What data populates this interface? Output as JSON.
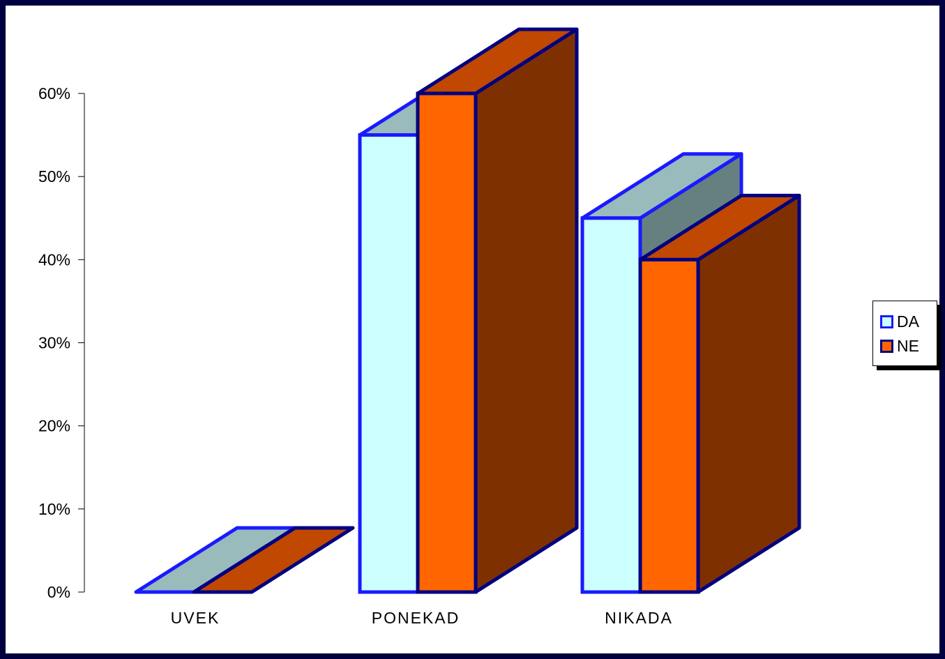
{
  "chart_data": {
    "type": "bar",
    "categories": [
      "UVEK",
      "PONEKAD",
      "NIKADA"
    ],
    "series": [
      {
        "name": "DA",
        "values": [
          0,
          55,
          45
        ]
      },
      {
        "name": "NE",
        "values": [
          0,
          60,
          40
        ]
      }
    ],
    "yticks": [
      "0%",
      "10%",
      "20%",
      "30%",
      "40%",
      "50%",
      "60%"
    ],
    "ylim": [
      0,
      60
    ],
    "grid": false,
    "legend_position": "right",
    "three_d": true
  },
  "colors": {
    "background_border": "#000040",
    "DA": {
      "front": "#ccffff",
      "top": "#99bbbb",
      "side": "#668080",
      "edge": "#1a1aff"
    },
    "NE": {
      "front": "#ff6600",
      "top": "#c04800",
      "side": "#7f3000",
      "edge": "#000080"
    }
  },
  "legend": {
    "items": [
      {
        "label": "DA"
      },
      {
        "label": "NE"
      }
    ]
  }
}
